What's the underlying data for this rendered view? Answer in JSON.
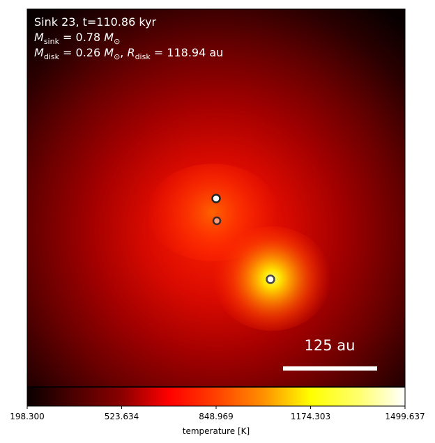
{
  "overlay": {
    "line1": "Sink 23, t=110.86 kyr",
    "line2_symbol": "M",
    "line2_sub": "sink",
    "line2_value": " = 0.78 ",
    "line2_unit_symbol": "M",
    "line2_unit_sub": "⊙",
    "line3_symbol": "M",
    "line3_sub": "disk",
    "line3_value": " = 0.26 ",
    "line3_unit_symbol": "M",
    "line3_unit_sub": "⊙",
    "line3_sep": ", ",
    "line3_r_symbol": "R",
    "line3_r_sub": "disk",
    "line3_r_value": " = 118.94 au"
  },
  "scale_bar": {
    "label": "125 au"
  },
  "colorbar": {
    "label": "temperature [K]",
    "ticks": [
      "198.300",
      "523.634",
      "848.969",
      "1174.303",
      "1499.637"
    ],
    "colormap": "hot"
  },
  "sinks": [
    {
      "name": "sink-a",
      "fill": "#ffffff",
      "ring": "#222222"
    },
    {
      "name": "sink-b",
      "fill": "#ff9a7a",
      "ring": "#3a2a2a"
    },
    {
      "name": "sink-c",
      "fill": "#ffffff",
      "ring": "#444444"
    }
  ],
  "colors": {
    "background_edge": "#000000",
    "hot_core": "#ffff40",
    "mid": "#ff2a00"
  }
}
